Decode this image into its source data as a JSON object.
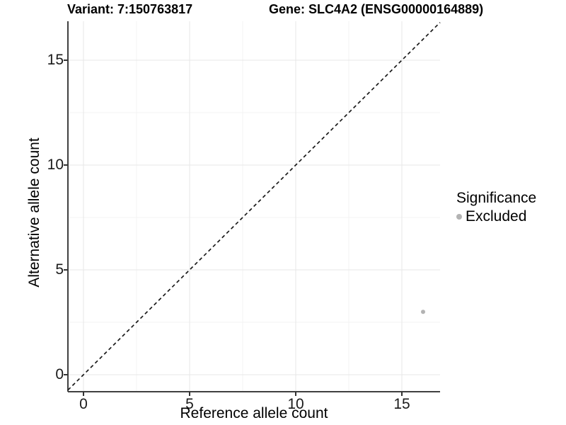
{
  "titles": {
    "variant": "Variant: 7:150763817",
    "gene": "Gene: SLC4A2 (ENSG00000164889)"
  },
  "chart_data": {
    "type": "scatter",
    "title_left": "Variant: 7:150763817",
    "title_right": "Gene: SLC4A2 (ENSG00000164889)",
    "xlabel": "Reference allele count",
    "ylabel": "Alternative allele count",
    "xlim": [
      -0.8,
      16.85
    ],
    "ylim": [
      -0.8,
      16.85
    ],
    "x_ticks": [
      0,
      5,
      10,
      15
    ],
    "y_ticks": [
      0,
      5,
      10,
      15
    ],
    "x_minor_breaks": [
      2.5,
      7.5,
      12.5
    ],
    "y_minor_breaks": [
      2.5,
      7.5,
      12.5
    ],
    "grid": true,
    "legend": {
      "title": "Significance",
      "position": "right"
    },
    "series": [
      {
        "name": "Excluded",
        "color": "#b3b3b3",
        "points": [
          {
            "x": 16,
            "y": 3
          }
        ]
      }
    ],
    "abline": {
      "slope": 1,
      "intercept": 0,
      "linetype": "dashed",
      "color": "#1a1a1a"
    }
  },
  "colors": {
    "background": "#ffffff",
    "grid_major": "#e7e7e7",
    "grid_minor": "#f3f3f3",
    "axis_line": "#404040",
    "tick_mark": "#333333",
    "abline": "#1a1a1a",
    "point": "#b3b3b3"
  }
}
